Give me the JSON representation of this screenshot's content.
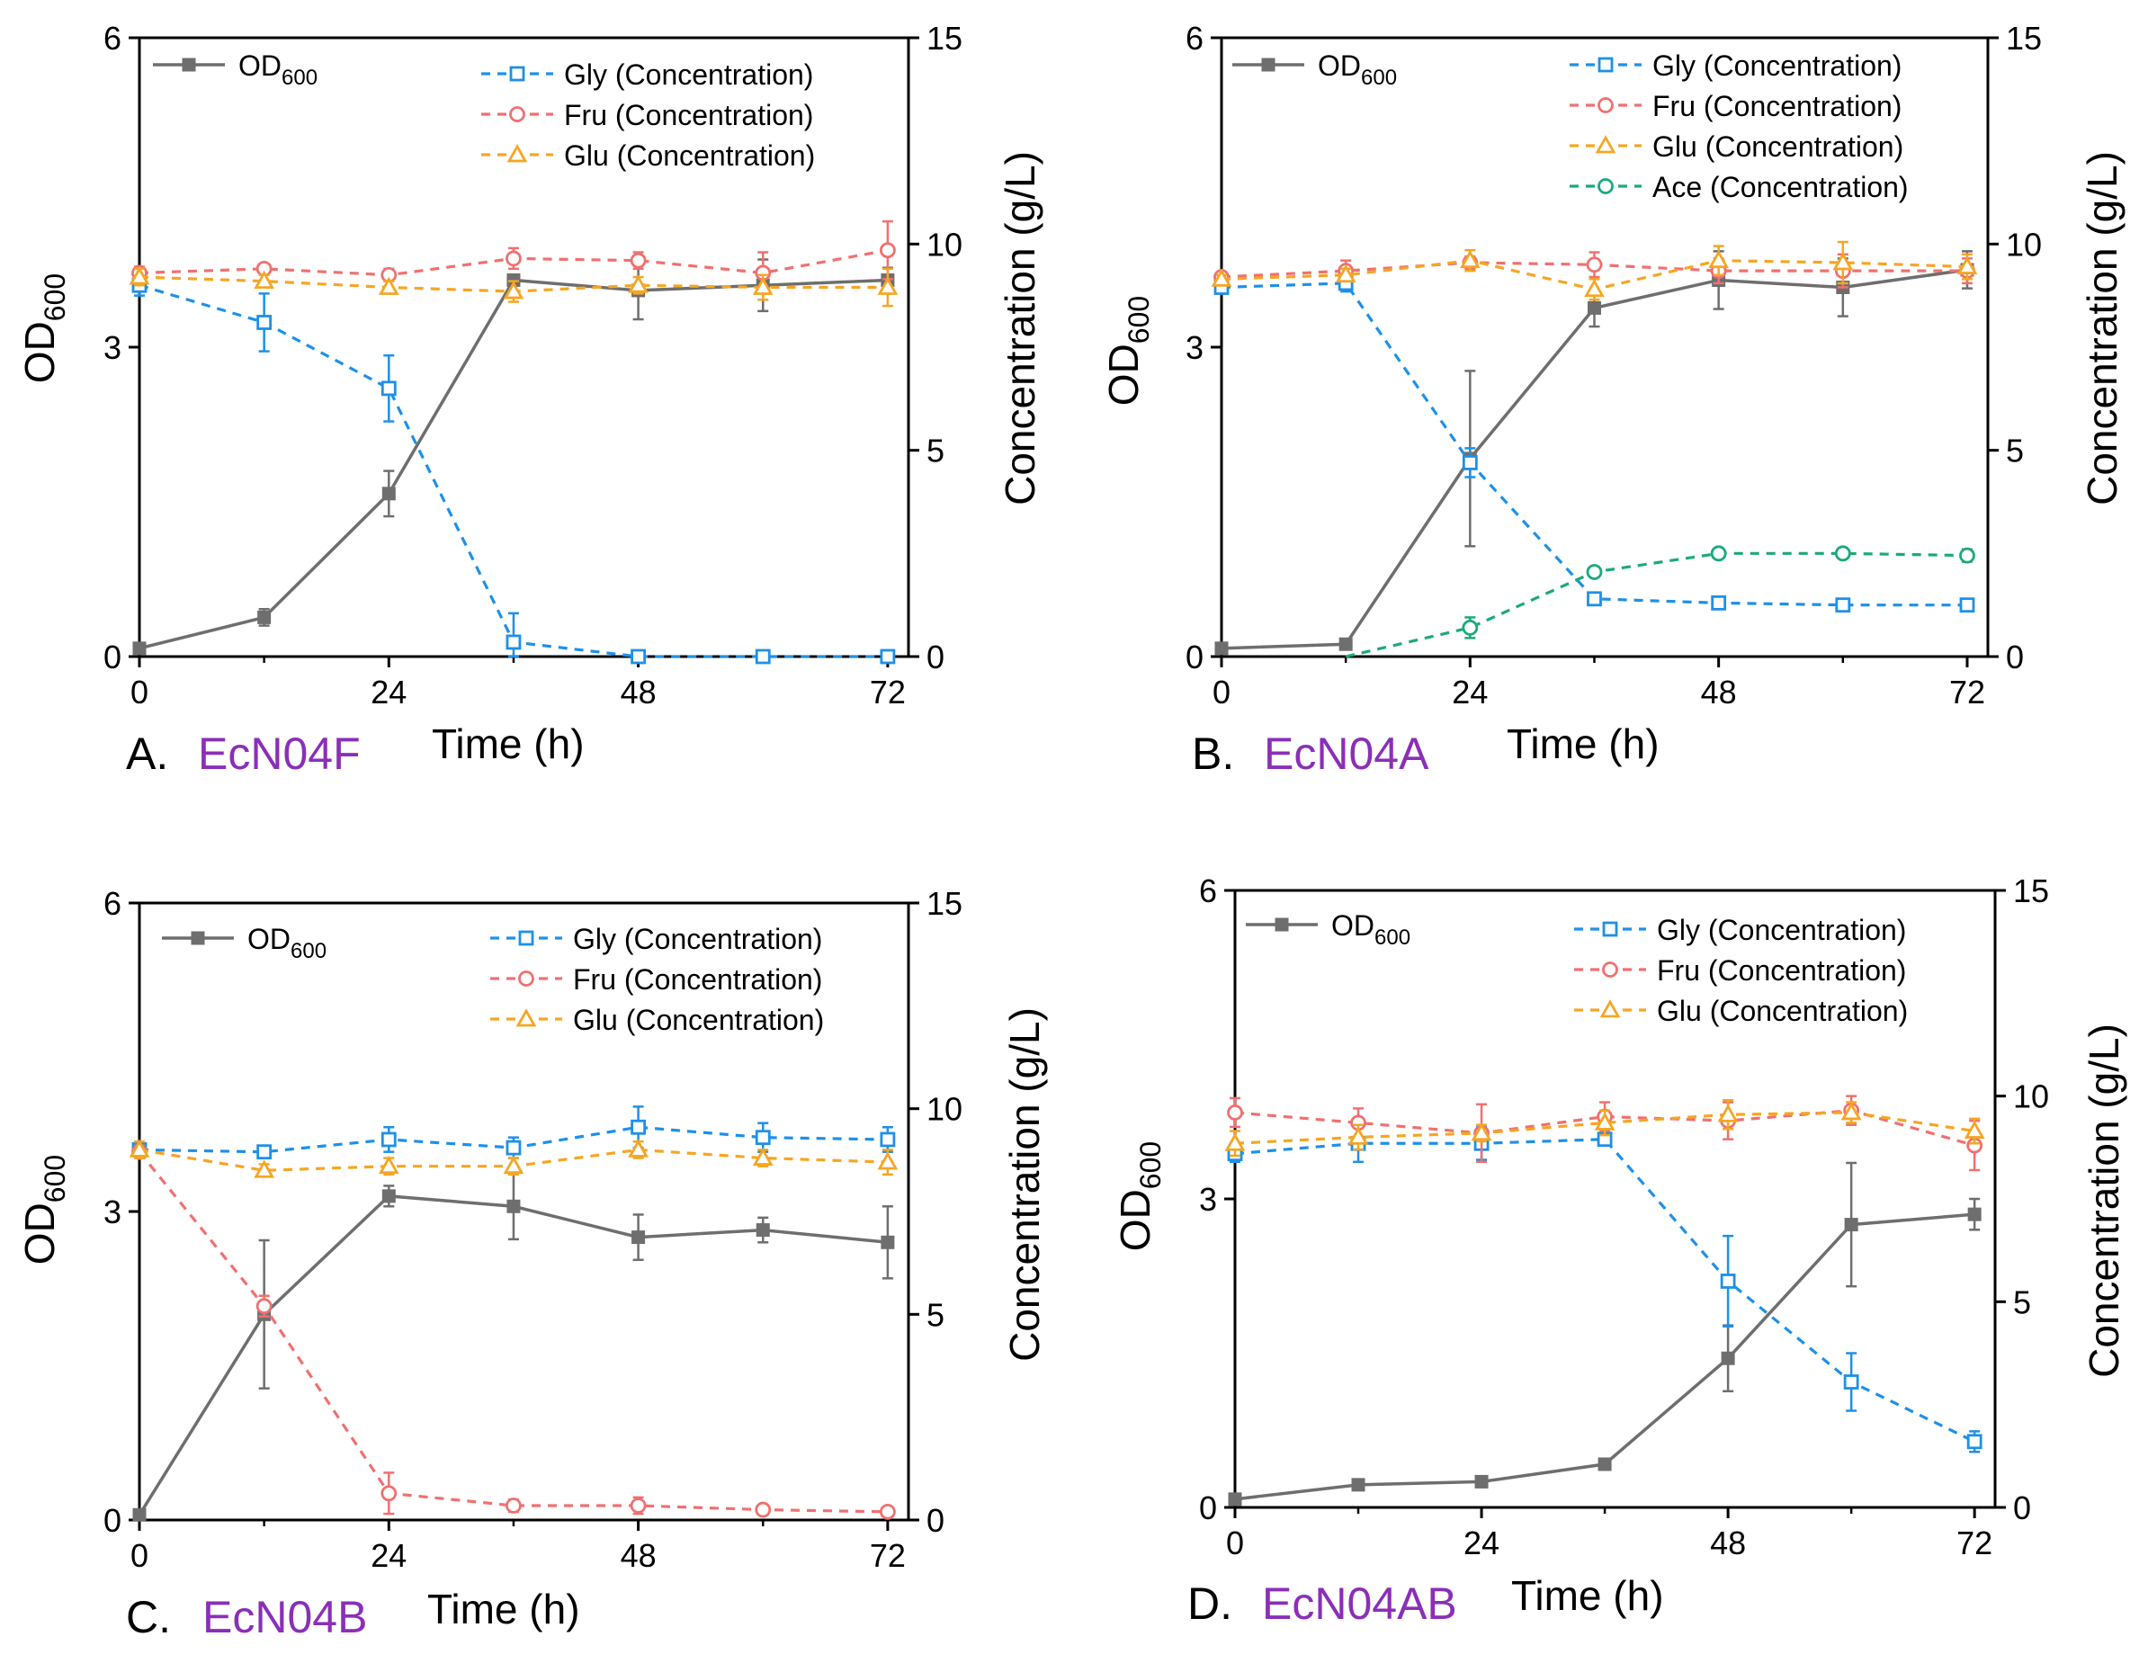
{
  "colors": {
    "od": "#6e6e6e",
    "gly": "#1e90e8",
    "fru": "#f07070",
    "glu": "#f5a623",
    "ace": "#1aaa7a",
    "strain": "#8a2fb8",
    "axis": "#000000"
  },
  "chart_data": [
    {
      "panel": "A",
      "strain": "EcN04F",
      "type": "line",
      "xlabel": "Time (h)",
      "ylabel_left": "OD",
      "ylabel_left_sub": "600",
      "ylabel_right": "Concentration (g/L)",
      "xticks": [
        "0",
        "24",
        "48",
        "72"
      ],
      "yticks_left": [
        "0",
        "3",
        "6"
      ],
      "yticks_right": [
        "0",
        "5",
        "10",
        "15"
      ],
      "xlim": [
        0,
        74
      ],
      "ylim_left": [
        0,
        6
      ],
      "ylim_right": [
        0,
        15
      ],
      "x": [
        0,
        12,
        24,
        36,
        48,
        60,
        72
      ],
      "od_legend_label": "OD",
      "od_legend_sub": "600",
      "series": [
        {
          "key": "od",
          "name": "OD600",
          "axis": "left",
          "marker": "filled-square",
          "values": [
            0.08,
            0.38,
            1.58,
            3.65,
            3.55,
            3.6,
            3.65
          ],
          "errors": [
            0.03,
            0.08,
            0.22,
            0.05,
            0.28,
            0.25,
            0.12
          ]
        },
        {
          "key": "gly",
          "name": "Gly (Concentration)",
          "axis": "right",
          "marker": "open-square",
          "values": [
            9.0,
            8.1,
            6.5,
            0.35,
            0.0,
            0.0,
            0.0
          ],
          "errors": [
            0.25,
            0.7,
            0.8,
            0.7,
            0.05,
            0.05,
            0.05
          ]
        },
        {
          "key": "fru",
          "name": "Fru (Concentration)",
          "axis": "right",
          "marker": "open-circle",
          "values": [
            9.3,
            9.4,
            9.25,
            9.65,
            9.6,
            9.3,
            9.85
          ],
          "errors": [
            0.15,
            0.1,
            0.15,
            0.25,
            0.2,
            0.5,
            0.7
          ]
        },
        {
          "key": "glu",
          "name": "Glu (Concentration)",
          "axis": "right",
          "marker": "open-triangle",
          "values": [
            9.2,
            9.1,
            8.95,
            8.85,
            9.0,
            8.95,
            8.95
          ],
          "errors": [
            0.2,
            0.15,
            0.15,
            0.25,
            0.2,
            0.3,
            0.45
          ]
        }
      ]
    },
    {
      "panel": "B",
      "strain": "EcN04A",
      "type": "line",
      "xlabel": "Time (h)",
      "ylabel_left": "OD",
      "ylabel_left_sub": "600",
      "ylabel_right": "Concentration (g/L)",
      "xticks": [
        "0",
        "24",
        "48",
        "72"
      ],
      "yticks_left": [
        "0",
        "3",
        "6"
      ],
      "yticks_right": [
        "0",
        "5",
        "10",
        "15"
      ],
      "xlim": [
        0,
        74
      ],
      "ylim_left": [
        0,
        6
      ],
      "ylim_right": [
        0,
        15
      ],
      "x": [
        0,
        12,
        24,
        36,
        48,
        60,
        72
      ],
      "od_legend_label": "OD",
      "od_legend_sub": "600",
      "series": [
        {
          "key": "od",
          "name": "OD600",
          "axis": "left",
          "marker": "filled-square",
          "values": [
            0.08,
            0.12,
            1.92,
            3.38,
            3.65,
            3.58,
            3.75
          ],
          "errors": [
            0.02,
            0.03,
            0.85,
            0.18,
            0.28,
            0.28,
            0.18
          ]
        },
        {
          "key": "gly",
          "name": "Gly (Concentration)",
          "axis": "right",
          "marker": "open-square",
          "values": [
            8.95,
            9.05,
            4.7,
            1.4,
            1.3,
            1.25,
            1.25
          ],
          "errors": [
            0.15,
            0.2,
            0.35,
            0.1,
            0.08,
            0.08,
            0.08
          ]
        },
        {
          "key": "fru",
          "name": "Fru (Concentration)",
          "axis": "right",
          "marker": "open-circle",
          "values": [
            9.2,
            9.35,
            9.55,
            9.5,
            9.35,
            9.35,
            9.35
          ],
          "errors": [
            0.1,
            0.25,
            0.15,
            0.3,
            0.3,
            0.4,
            0.3
          ]
        },
        {
          "key": "glu",
          "name": "Glu (Concentration)",
          "axis": "right",
          "marker": "open-triangle",
          "values": [
            9.15,
            9.25,
            9.6,
            8.9,
            9.6,
            9.55,
            9.45
          ],
          "errors": [
            0.1,
            0.15,
            0.25,
            0.25,
            0.35,
            0.5,
            0.3
          ]
        },
        {
          "key": "ace",
          "name": "Ace (Concentration)",
          "axis": "right",
          "marker": "open-circle",
          "values": [
            null,
            0.0,
            0.7,
            2.05,
            2.5,
            2.5,
            2.45
          ],
          "errors": [
            0,
            0,
            0.25,
            0.08,
            0.12,
            0.12,
            0.15
          ]
        }
      ]
    },
    {
      "panel": "C",
      "strain": "EcN04B",
      "type": "line",
      "xlabel": "Time (h)",
      "ylabel_left": "OD",
      "ylabel_left_sub": "600",
      "ylabel_right": "Concentration (g/L)",
      "xticks": [
        "0",
        "24",
        "48",
        "72"
      ],
      "yticks_left": [
        "0",
        "3",
        "6"
      ],
      "yticks_right": [
        "0",
        "5",
        "10",
        "15"
      ],
      "xlim": [
        0,
        74
      ],
      "ylim_left": [
        0,
        6
      ],
      "ylim_right": [
        0,
        15
      ],
      "x": [
        0,
        12,
        24,
        36,
        48,
        60,
        72
      ],
      "od_legend_label": "OD",
      "od_legend_sub": "600",
      "series": [
        {
          "key": "od",
          "name": "OD600",
          "axis": "left",
          "marker": "filled-square",
          "values": [
            0.05,
            2.0,
            3.15,
            3.05,
            2.75,
            2.82,
            2.7
          ],
          "errors": [
            0.02,
            0.72,
            0.1,
            0.32,
            0.22,
            0.12,
            0.35
          ]
        },
        {
          "key": "gly",
          "name": "Gly (Concentration)",
          "axis": "right",
          "marker": "open-square",
          "values": [
            9.0,
            8.95,
            9.25,
            9.05,
            9.55,
            9.3,
            9.25
          ],
          "errors": [
            0.1,
            0.12,
            0.3,
            0.25,
            0.5,
            0.35,
            0.3
          ]
        },
        {
          "key": "fru",
          "name": "Fru (Concentration)",
          "axis": "right",
          "marker": "open-circle",
          "values": [
            8.95,
            5.2,
            0.65,
            0.35,
            0.35,
            0.25,
            0.2
          ],
          "errors": [
            0.15,
            0.25,
            0.5,
            0.15,
            0.2,
            0.08,
            0.05
          ]
        },
        {
          "key": "glu",
          "name": "Glu (Concentration)",
          "axis": "right",
          "marker": "open-triangle",
          "values": [
            9.0,
            8.5,
            8.6,
            8.6,
            9.0,
            8.8,
            8.7
          ],
          "errors": [
            0.2,
            0.15,
            0.2,
            0.2,
            0.2,
            0.2,
            0.3
          ]
        }
      ]
    },
    {
      "panel": "D",
      "strain": "EcN04AB",
      "type": "line",
      "xlabel": "Time (h)",
      "ylabel_left": "OD",
      "ylabel_left_sub": "600",
      "ylabel_right": "Concentration (g/L)",
      "xticks": [
        "0",
        "24",
        "48",
        "72"
      ],
      "yticks_left": [
        "0",
        "3",
        "6"
      ],
      "yticks_right": [
        "0",
        "5",
        "10",
        "15"
      ],
      "xlim": [
        0,
        74
      ],
      "ylim_left": [
        0,
        6
      ],
      "ylim_right": [
        0,
        15
      ],
      "x": [
        0,
        12,
        24,
        36,
        48,
        60,
        72
      ],
      "od_legend_label": "OD",
      "od_legend_sub": "600",
      "series": [
        {
          "key": "od",
          "name": "OD600",
          "axis": "left",
          "marker": "filled-square",
          "values": [
            0.08,
            0.22,
            0.25,
            0.42,
            1.45,
            2.75,
            2.85
          ],
          "errors": [
            0.02,
            0.04,
            0.04,
            0.04,
            0.32,
            0.6,
            0.15
          ]
        },
        {
          "key": "gly",
          "name": "Gly (Concentration)",
          "axis": "right",
          "marker": "open-square",
          "values": [
            8.6,
            8.85,
            8.85,
            8.95,
            5.5,
            3.05,
            1.6
          ],
          "errors": [
            0.2,
            0.45,
            0.4,
            0.1,
            1.1,
            0.7,
            0.25
          ]
        },
        {
          "key": "fru",
          "name": "Fru (Concentration)",
          "axis": "right",
          "marker": "open-circle",
          "values": [
            9.6,
            9.35,
            9.1,
            9.5,
            9.4,
            9.65,
            8.8
          ],
          "errors": [
            0.35,
            0.35,
            0.7,
            0.35,
            0.45,
            0.35,
            0.6
          ]
        },
        {
          "key": "glu",
          "name": "Glu (Concentration)",
          "axis": "right",
          "marker": "open-triangle",
          "values": [
            8.85,
            9.0,
            9.1,
            9.35,
            9.55,
            9.6,
            9.15
          ],
          "errors": [
            0.3,
            0.3,
            0.2,
            0.3,
            0.35,
            0.25,
            0.3
          ]
        }
      ]
    }
  ]
}
